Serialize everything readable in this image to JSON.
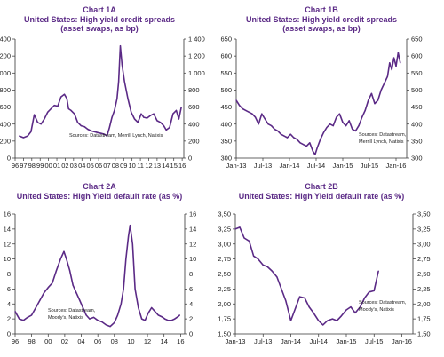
{
  "colors": {
    "series": "#5b2a86",
    "title": "#5b2a86",
    "axis": "#333333",
    "text": "#222222"
  },
  "chart_data": [
    {
      "id": "1A",
      "type": "line",
      "title": "Chart 1A",
      "subtitle_lines": [
        "United States: High yield credit spreads",
        "(asset swaps, as bp)"
      ],
      "source_lines": [
        "Sources: Datastream, Merrill Lynch, Natixis"
      ],
      "xlim": [
        1996.5,
        2016.7
      ],
      "ylim": [
        0,
        1400
      ],
      "yticks": [
        0,
        200,
        400,
        600,
        800,
        1000,
        1200,
        1400
      ],
      "ytick_labels": [
        "0",
        "200",
        "400",
        "600",
        "800",
        "1 000",
        "1 200",
        "1 400"
      ],
      "xtick_labels": [
        "96",
        "97",
        "98",
        "99",
        "00",
        "01",
        "02",
        "03",
        "04",
        "05",
        "06",
        "07",
        "08",
        "09",
        "10",
        "11",
        "12",
        "13",
        "14",
        "15",
        "16"
      ],
      "x": [
        1997.0,
        1997.5,
        1998.0,
        1998.4,
        1998.8,
        1999.2,
        1999.6,
        2000.0,
        2000.4,
        2000.8,
        2001.2,
        2001.6,
        2002.0,
        2002.4,
        2002.7,
        2002.9,
        2003.2,
        2003.6,
        2004.0,
        2004.4,
        2004.8,
        2005.2,
        2005.6,
        2006.0,
        2006.4,
        2006.8,
        2007.2,
        2007.5,
        2007.8,
        2008.1,
        2008.4,
        2008.7,
        2008.9,
        2009.1,
        2009.3,
        2009.6,
        2010.0,
        2010.4,
        2010.8,
        2011.2,
        2011.6,
        2011.9,
        2012.3,
        2012.7,
        2013.1,
        2013.5,
        2013.9,
        2014.3,
        2014.6,
        2015.0,
        2015.4,
        2015.8,
        2016.1,
        2016.4
      ],
      "values": [
        260,
        240,
        260,
        310,
        510,
        420,
        400,
        460,
        540,
        580,
        620,
        610,
        720,
        750,
        700,
        580,
        560,
        520,
        420,
        380,
        370,
        340,
        320,
        310,
        300,
        290,
        280,
        260,
        360,
        480,
        560,
        700,
        900,
        1320,
        1100,
        900,
        700,
        540,
        460,
        420,
        520,
        480,
        470,
        500,
        520,
        440,
        420,
        380,
        330,
        360,
        520,
        560,
        460,
        600
      ],
      "ylabel": "",
      "xlabel": ""
    },
    {
      "id": "1B",
      "type": "line",
      "title": "Chart 1B",
      "subtitle_lines": [
        "United States: High yield credit spreads",
        "(asset swaps, as bp)"
      ],
      "source_lines": [
        "Sources: Datastream,",
        "Merrill Lynch, Natixis"
      ],
      "xlim": [
        2013.0,
        2016.2
      ],
      "ylim": [
        300,
        650
      ],
      "yticks": [
        300,
        350,
        400,
        450,
        500,
        550,
        600,
        650
      ],
      "ytick_labels": [
        "300",
        "350",
        "400",
        "450",
        "500",
        "550",
        "600",
        "650"
      ],
      "xtick_labels": [
        "Jan-13",
        "Jul-13",
        "Jan-14",
        "Jul-14",
        "Jan-15",
        "Jul-15",
        "Jan-16"
      ],
      "xtick_positions": [
        2013.0,
        2013.5,
        2014.0,
        2014.5,
        2015.0,
        2015.5,
        2016.0
      ],
      "x": [
        2013.0,
        2013.06,
        2013.12,
        2013.18,
        2013.24,
        2013.3,
        2013.36,
        2013.42,
        2013.48,
        2013.54,
        2013.6,
        2013.66,
        2013.72,
        2013.78,
        2013.84,
        2013.9,
        2013.96,
        2014.02,
        2014.08,
        2014.14,
        2014.2,
        2014.26,
        2014.32,
        2014.38,
        2014.44,
        2014.48,
        2014.52,
        2014.58,
        2014.64,
        2014.7,
        2014.76,
        2014.82,
        2014.88,
        2014.94,
        2015.0,
        2015.06,
        2015.12,
        2015.18,
        2015.24,
        2015.3,
        2015.36,
        2015.42,
        2015.48,
        2015.54,
        2015.6,
        2015.66,
        2015.72,
        2015.78,
        2015.84,
        2015.88,
        2015.92,
        2015.96,
        2016.0,
        2016.04,
        2016.08
      ],
      "values": [
        470,
        455,
        445,
        440,
        435,
        430,
        420,
        400,
        430,
        415,
        400,
        395,
        385,
        380,
        370,
        365,
        360,
        370,
        360,
        355,
        345,
        340,
        335,
        345,
        320,
        310,
        330,
        355,
        375,
        390,
        400,
        395,
        420,
        430,
        405,
        395,
        410,
        385,
        380,
        395,
        420,
        440,
        470,
        490,
        460,
        470,
        500,
        520,
        540,
        580,
        560,
        595,
        570,
        610,
        580
      ],
      "ylabel": "",
      "xlabel": ""
    },
    {
      "id": "2A",
      "type": "line",
      "title": "Chart 2A",
      "subtitle_lines": [
        "United States: High Yield default rate (as %)"
      ],
      "source_lines": [
        "Sources: Datastream,",
        "Moody's, Natixis"
      ],
      "xlim": [
        1996.0,
        2016.5
      ],
      "ylim": [
        0,
        16
      ],
      "yticks": [
        0,
        2,
        4,
        6,
        8,
        10,
        12,
        14,
        16
      ],
      "ytick_labels": [
        "0",
        "2",
        "4",
        "6",
        "8",
        "10",
        "12",
        "14",
        "16"
      ],
      "xtick_labels": [
        "96",
        "98",
        "00",
        "02",
        "04",
        "06",
        "08",
        "10",
        "12",
        "14",
        "16"
      ],
      "xtick_positions": [
        1996,
        1998,
        2000,
        2002,
        2004,
        2006,
        2008,
        2010,
        2012,
        2014,
        2016
      ],
      "x": [
        1996.0,
        1996.5,
        1997.0,
        1997.5,
        1998.0,
        1998.5,
        1999.0,
        1999.5,
        2000.0,
        2000.5,
        2001.0,
        2001.5,
        2001.9,
        2002.2,
        2002.6,
        2003.0,
        2003.4,
        2003.8,
        2004.2,
        2004.6,
        2005.0,
        2005.5,
        2006.0,
        2006.5,
        2007.0,
        2007.5,
        2008.0,
        2008.4,
        2008.8,
        2009.1,
        2009.4,
        2009.7,
        2009.9,
        2010.2,
        2010.5,
        2010.9,
        2011.3,
        2011.7,
        2012.1,
        2012.5,
        2012.9,
        2013.3,
        2013.7,
        2014.1,
        2014.5,
        2014.9,
        2015.3,
        2015.7,
        2015.9
      ],
      "values": [
        3.0,
        2.0,
        1.8,
        2.2,
        2.5,
        3.5,
        4.5,
        5.5,
        6.2,
        6.8,
        8.5,
        10.0,
        11.0,
        10.0,
        8.5,
        6.5,
        5.5,
        4.5,
        3.5,
        2.5,
        2.0,
        2.2,
        1.8,
        1.6,
        1.2,
        1.0,
        1.5,
        2.5,
        4.0,
        6.0,
        10.0,
        13.0,
        14.5,
        12.0,
        6.0,
        3.5,
        2.0,
        1.8,
        2.8,
        3.5,
        3.0,
        2.5,
        2.3,
        2.0,
        1.8,
        1.8,
        2.0,
        2.3,
        2.5
      ],
      "ylabel": "",
      "xlabel": ""
    },
    {
      "id": "2B",
      "type": "line",
      "title": "Chart 2B",
      "subtitle_lines": [
        "United States: High Yield default rate (as %)"
      ],
      "source_lines": [
        "Sources: Datastream,",
        "Moody's, Natixis"
      ],
      "xlim": [
        2013.0,
        2016.2
      ],
      "ylim": [
        1.5,
        3.5
      ],
      "yticks": [
        1.5,
        1.75,
        2.0,
        2.25,
        2.5,
        2.75,
        3.0,
        3.25,
        3.5
      ],
      "ytick_labels": [
        "1,50",
        "1,75",
        "2,00",
        "2,25",
        "2,50",
        "2,75",
        "3,00",
        "3,25",
        "3,50"
      ],
      "xtick_labels": [
        "Jan-13",
        "Jul-13",
        "Jan-14",
        "Jul-14",
        "Jan-15",
        "Jul-15",
        "Jan-16"
      ],
      "xtick_positions": [
        2013.0,
        2013.5,
        2014.0,
        2014.5,
        2015.0,
        2015.5,
        2016.0
      ],
      "x": [
        2013.0,
        2013.08,
        2013.16,
        2013.25,
        2013.33,
        2013.41,
        2013.5,
        2013.58,
        2013.66,
        2013.75,
        2013.83,
        2013.91,
        2014.0,
        2014.08,
        2014.16,
        2014.25,
        2014.33,
        2014.41,
        2014.5,
        2014.58,
        2014.66,
        2014.75,
        2014.83,
        2014.91,
        2015.0,
        2015.08,
        2015.16,
        2015.25,
        2015.33,
        2015.41,
        2015.5,
        2015.58
      ],
      "values": [
        3.25,
        3.28,
        3.1,
        3.05,
        2.8,
        2.75,
        2.65,
        2.62,
        2.55,
        2.45,
        2.25,
        2.05,
        1.72,
        1.92,
        2.12,
        2.1,
        1.95,
        1.85,
        1.72,
        1.65,
        1.72,
        1.75,
        1.72,
        1.8,
        1.9,
        1.95,
        1.85,
        1.95,
        2.1,
        2.2,
        2.22,
        2.55
      ],
      "ylabel": "",
      "xlabel": ""
    }
  ]
}
